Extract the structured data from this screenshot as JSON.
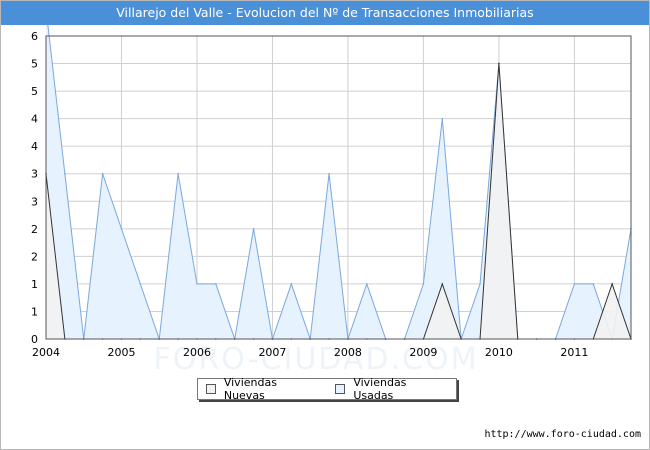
{
  "title": "Villarejo del Valle - Evolucion del Nº de Transacciones Inmobiliarias",
  "watermark": "FORO-CIUDAD.COM",
  "source": "http://www.foro-ciudad.com",
  "colors": {
    "title_bg": "#4a90d9",
    "nuevas_fill": "#f2f2f2",
    "nuevas_line": "#333333",
    "usadas_fill": "#e6f2fd",
    "usadas_line": "#7aa8dc",
    "grid": "#d0d0d0"
  },
  "chart_data": {
    "type": "area",
    "x_tick_labels": [
      "2004",
      "2005",
      "2006",
      "2007",
      "2008",
      "2009",
      "2010",
      "2011"
    ],
    "y_tick_labels": [
      "0",
      "1",
      "1",
      "2",
      "2",
      "3",
      "3",
      "4",
      "4",
      "5",
      "5",
      "6"
    ],
    "ylim": [
      0,
      5.5
    ],
    "quarters": [
      "2004T1",
      "2004T2",
      "2004T3",
      "2004T4",
      "2005T1",
      "2005T2",
      "2005T3",
      "2005T4",
      "2006T1",
      "2006T2",
      "2006T3",
      "2006T4",
      "2007T1",
      "2007T2",
      "2007T3",
      "2007T4",
      "2008T1",
      "2008T2",
      "2008T3",
      "2008T4",
      "2009T1",
      "2009T2",
      "2009T3",
      "2009T4",
      "2010T1",
      "2010T2",
      "2010T3",
      "2010T4",
      "2011T1",
      "2011T2",
      "2011T3",
      "2011T4"
    ],
    "series": [
      {
        "name": "Viviendas Nuevas",
        "values": [
          3,
          0,
          0,
          0,
          0,
          0,
          0,
          0,
          0,
          0,
          0,
          0,
          0,
          0,
          0,
          0,
          0,
          0,
          0,
          0,
          0,
          1,
          0,
          0,
          5,
          0,
          0,
          0,
          0,
          0,
          1,
          0
        ]
      },
      {
        "name": "Viviendas Usadas",
        "values": [
          6,
          3,
          0,
          3,
          2,
          1,
          0,
          3,
          1,
          1,
          0,
          2,
          0,
          1,
          0,
          3,
          0,
          1,
          0,
          0,
          1,
          4,
          0,
          1,
          5,
          0,
          0,
          0,
          1,
          1,
          0,
          2
        ]
      }
    ],
    "grid": true,
    "legend_position": "bottom"
  }
}
